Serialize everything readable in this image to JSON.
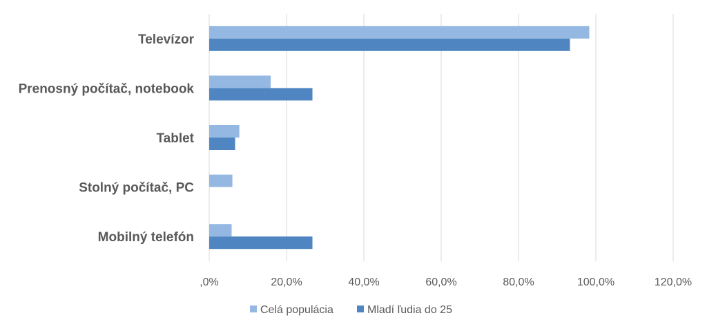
{
  "chart_data": {
    "type": "bar",
    "orientation": "horizontal",
    "categories": [
      "Televízor",
      "Prenosný počítač, notebook",
      "Tablet",
      "Stolný počítač, PC",
      "Mobilný telefón"
    ],
    "series": [
      {
        "name": "Celá populácia",
        "values": [
          98.3,
          15.9,
          7.8,
          6.0,
          5.8
        ],
        "color": "#95b8e2"
      },
      {
        "name": "Mladí ľudia do 25",
        "values": [
          93.3,
          26.7,
          6.7,
          0,
          26.7
        ],
        "color": "#4f86c1"
      }
    ],
    "xlim": [
      0,
      120
    ],
    "ticks": [
      0,
      20,
      40,
      60,
      80,
      100,
      120
    ],
    "tick_labels": [
      ",0%",
      "20,0%",
      "40,0%",
      "60,0%",
      "80,0%",
      "100,0%",
      "120,0%"
    ],
    "grid": true,
    "legend_position": "bottom"
  }
}
